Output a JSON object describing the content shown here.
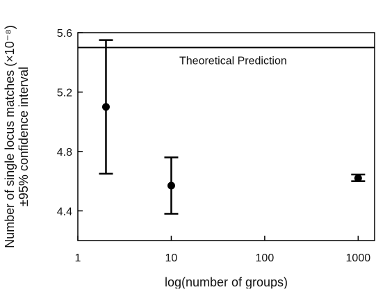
{
  "chart_data": {
    "type": "scatter",
    "xscale": "log",
    "xlim": [
      1,
      1500
    ],
    "ylim": [
      4.2,
      5.6
    ],
    "xticks": [
      1,
      10,
      100,
      1000
    ],
    "xtick_labels": [
      "1",
      "10",
      "100",
      "1000"
    ],
    "yticks": [
      4.4,
      4.8,
      5.2,
      5.6
    ],
    "ytick_labels": [
      "4.4",
      "4.8",
      "5.2",
      "5.6"
    ],
    "xlabel": "log(number of groups)",
    "ylabel": "Number of single locus matches (×10⁻⁸)",
    "ylabel_line2": "±95% confidence interval",
    "grid": false,
    "points": [
      {
        "x": 2,
        "y": 5.1,
        "y_low": 4.65,
        "y_high": 5.55
      },
      {
        "x": 10,
        "y": 4.57,
        "y_low": 4.38,
        "y_high": 4.76
      },
      {
        "x": 1000,
        "y": 4.62,
        "y_low": 4.6,
        "y_high": 4.645
      }
    ],
    "reference_line": {
      "y": 5.5,
      "label": "Theoretical Prediction"
    },
    "marker_color": "#000000",
    "line_color": "#000000"
  }
}
